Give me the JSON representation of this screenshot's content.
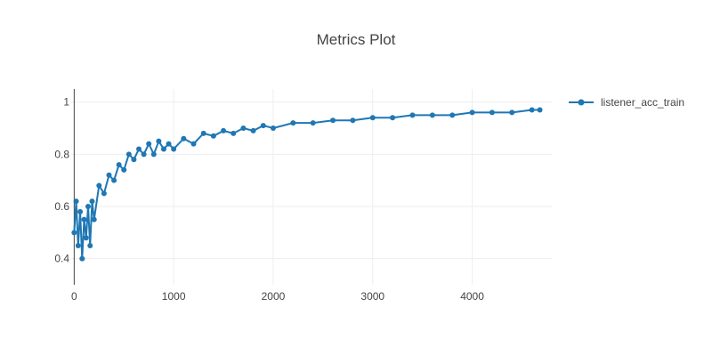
{
  "chart_data": {
    "type": "line",
    "title": "Metrics Plot",
    "xlabel": "",
    "ylabel": "",
    "xlim": [
      -30,
      4800
    ],
    "ylim": [
      0.3,
      1.05
    ],
    "grid": true,
    "legend_position": "top-right",
    "x_ticks": [
      0,
      1000,
      2000,
      3000,
      4000
    ],
    "y_ticks": [
      0.4,
      0.6,
      0.8,
      1
    ],
    "x_tick_labels": [
      "0",
      "1000",
      "2000",
      "3000",
      "4000"
    ],
    "y_tick_labels": [
      "0.4",
      "0.6",
      "0.8",
      "1"
    ],
    "series": [
      {
        "name": "listener_acc_train",
        "color": "#1f77b4",
        "marker": "circle",
        "x": [
          0,
          20,
          40,
          60,
          80,
          100,
          120,
          140,
          160,
          180,
          200,
          250,
          300,
          350,
          400,
          450,
          500,
          550,
          600,
          650,
          700,
          750,
          800,
          850,
          900,
          950,
          1000,
          1100,
          1200,
          1300,
          1400,
          1500,
          1600,
          1700,
          1800,
          1900,
          2000,
          2200,
          2400,
          2600,
          2800,
          3000,
          3200,
          3400,
          3600,
          3800,
          4000,
          4200,
          4400,
          4600,
          4680
        ],
        "y": [
          0.5,
          0.62,
          0.45,
          0.58,
          0.4,
          0.55,
          0.48,
          0.6,
          0.45,
          0.62,
          0.55,
          0.68,
          0.65,
          0.72,
          0.7,
          0.76,
          0.74,
          0.8,
          0.78,
          0.82,
          0.8,
          0.84,
          0.8,
          0.85,
          0.82,
          0.84,
          0.82,
          0.86,
          0.84,
          0.88,
          0.87,
          0.89,
          0.88,
          0.9,
          0.89,
          0.91,
          0.9,
          0.92,
          0.92,
          0.93,
          0.93,
          0.94,
          0.94,
          0.95,
          0.95,
          0.95,
          0.96,
          0.96,
          0.96,
          0.97,
          0.97
        ]
      }
    ]
  }
}
